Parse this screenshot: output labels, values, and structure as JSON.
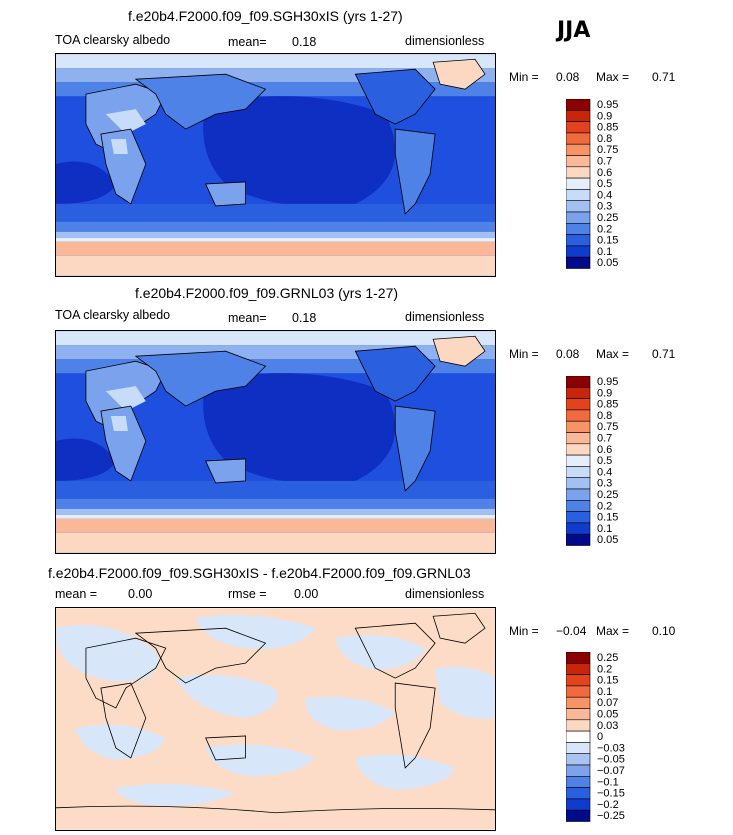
{
  "season": "JJA",
  "chart_data": [
    {
      "type": "heatmap",
      "title": "f.e20b4.F2000.f09_f09.SGH30xIS (yrs 1-27)",
      "left_label": "TOA clearsky albedo",
      "mean_label": "mean=",
      "mean_value": "0.18",
      "units": "dimensionless",
      "min_label": "Min =",
      "min_value": "0.08",
      "max_label": "Max =",
      "max_value": "0.71",
      "levels": [
        "0.95",
        "0.9",
        "0.85",
        "0.8",
        "0.75",
        "0.7",
        "0.6",
        "0.5",
        "0.4",
        "0.3",
        "0.25",
        "0.2",
        "0.15",
        "0.1",
        "0.05"
      ],
      "colors": [
        "#8b0000",
        "#c8250a",
        "#e2421e",
        "#ef6a3e",
        "#f79467",
        "#fbb899",
        "#fcd8c3",
        "#e5effb",
        "#c7dcf8",
        "#a2c0f2",
        "#7ba2ec",
        "#4f82e6",
        "#2a5fe0",
        "#0f3ccd",
        "#000b8c"
      ]
    },
    {
      "type": "heatmap",
      "title": "f.e20b4.F2000.f09_f09.GRNL03 (yrs 1-27)",
      "left_label": "TOA clearsky albedo",
      "mean_label": "mean=",
      "mean_value": "0.18",
      "units": "dimensionless",
      "min_label": "Min =",
      "min_value": "0.08",
      "max_label": "Max =",
      "max_value": "0.71",
      "levels": [
        "0.95",
        "0.9",
        "0.85",
        "0.8",
        "0.75",
        "0.7",
        "0.6",
        "0.5",
        "0.4",
        "0.3",
        "0.25",
        "0.2",
        "0.15",
        "0.1",
        "0.05"
      ],
      "colors": [
        "#8b0000",
        "#c8250a",
        "#e2421e",
        "#ef6a3e",
        "#f79467",
        "#fbb899",
        "#fcd8c3",
        "#e5effb",
        "#c7dcf8",
        "#a2c0f2",
        "#7ba2ec",
        "#4f82e6",
        "#2a5fe0",
        "#0f3ccd",
        "#000b8c"
      ]
    },
    {
      "type": "heatmap",
      "title": "f.e20b4.F2000.f09_f09.SGH30xIS - f.e20b4.F2000.f09_f09.GRNL03",
      "mean_label": "mean =",
      "mean_value": "0.00",
      "rmse_label": "rmse =",
      "rmse_value": "0.00",
      "units": "dimensionless",
      "min_label": "Min =",
      "min_value": "−0.04",
      "max_label": "Max =",
      "max_value": "0.10",
      "levels": [
        "0.25",
        "0.2",
        "0.15",
        "0.1",
        "0.07",
        "0.05",
        "0.03",
        "0",
        "−0.03",
        "−0.05",
        "−0.07",
        "−0.1",
        "−0.15",
        "−0.2",
        "−0.25"
      ],
      "colors": [
        "#8b0000",
        "#c8250a",
        "#e2421e",
        "#ef6a3e",
        "#f79467",
        "#fbb899",
        "#fcd8c3",
        "#ffffff",
        "#d8e6fa",
        "#a9c4f1",
        "#7fa3ea",
        "#4f82e6",
        "#2a5fe0",
        "#0f3ccd",
        "#000b8c"
      ]
    }
  ]
}
